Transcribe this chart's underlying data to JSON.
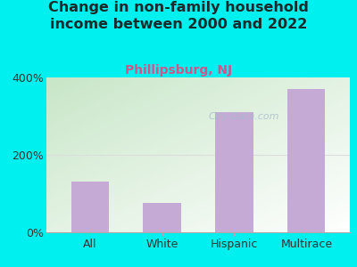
{
  "title": "Change in non-family household\nincome between 2000 and 2022",
  "subtitle": "Phillipsburg, NJ",
  "categories": [
    "All",
    "White",
    "Hispanic",
    "Multirace"
  ],
  "values": [
    130,
    75,
    310,
    370
  ],
  "bar_color": "#c4aad4",
  "background_color": "#00f0f0",
  "title_fontsize": 11.5,
  "subtitle_fontsize": 10,
  "subtitle_color": "#d4548a",
  "title_color": "#1a2a2a",
  "ylim": [
    0,
    400
  ],
  "yticks": [
    0,
    200,
    400
  ],
  "ytick_labels": [
    "0%",
    "200%",
    "400%"
  ],
  "watermark": "City-Data.com",
  "watermark_color": "#aabbcc",
  "grid_color": "#dddddd",
  "axis_color": "#aaaaaa"
}
